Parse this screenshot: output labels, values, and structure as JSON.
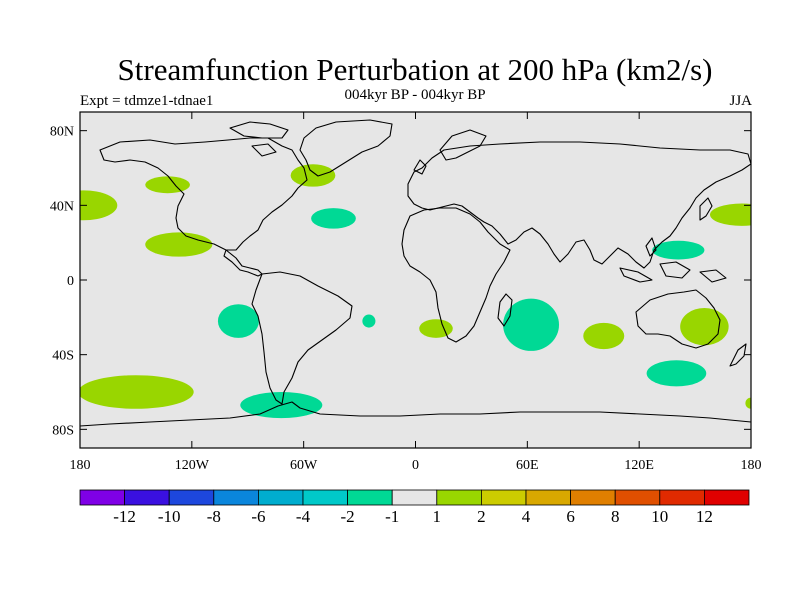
{
  "title": "Streamfunction Perturbation at 200 hPa (km2/s)",
  "subtitle": "004kyr BP - 004kyr BP",
  "left_label": "Expt = tdmze1-tdnae1",
  "right_label": "JJA",
  "colors": {
    "background": "#e6e6e6",
    "negative_fill": "#00d995",
    "positive_fill": "#99d600",
    "coast": "#000000"
  },
  "axes": {
    "y_ticks": [
      {
        "value": 80,
        "label": "80N"
      },
      {
        "value": 40,
        "label": "40N"
      },
      {
        "value": 0,
        "label": "0"
      },
      {
        "value": -40,
        "label": "40S"
      },
      {
        "value": -80,
        "label": "80S"
      }
    ],
    "x_ticks": [
      {
        "value": -180,
        "label": "180"
      },
      {
        "value": -120,
        "label": "120W"
      },
      {
        "value": -60,
        "label": "60W"
      },
      {
        "value": 0,
        "label": "0"
      },
      {
        "value": 60,
        "label": "60E"
      },
      {
        "value": 120,
        "label": "120E"
      },
      {
        "value": 180,
        "label": "180"
      }
    ],
    "lon_range": [
      -180,
      180
    ],
    "lat_range": [
      -90,
      90
    ]
  },
  "anomalies": [
    {
      "lon": -178,
      "lat": 40,
      "rlon": 18,
      "rlat": 8,
      "sign": "positive"
    },
    {
      "lon": -133,
      "lat": 51,
      "rlon": 12,
      "rlat": 4.5,
      "sign": "positive"
    },
    {
      "lon": -127,
      "lat": 19,
      "rlon": 18,
      "rlat": 6.5,
      "sign": "positive"
    },
    {
      "lon": -55,
      "lat": 56,
      "rlon": 12,
      "rlat": 6,
      "sign": "positive"
    },
    {
      "lon": -44,
      "lat": 33,
      "rlon": 12,
      "rlat": 5.5,
      "sign": "negative"
    },
    {
      "lon": -95,
      "lat": -22,
      "rlon": 11,
      "rlat": 9,
      "sign": "negative"
    },
    {
      "lon": -25,
      "lat": -22,
      "rlon": 3.5,
      "rlat": 3.5,
      "sign": "negative"
    },
    {
      "lon": 11,
      "lat": -26,
      "rlon": 9,
      "rlat": 5,
      "sign": "positive"
    },
    {
      "lon": 62,
      "lat": -24,
      "rlon": 15,
      "rlat": 14,
      "sign": "negative"
    },
    {
      "lon": 101,
      "lat": -30,
      "rlon": 11,
      "rlat": 7,
      "sign": "positive"
    },
    {
      "lon": 141,
      "lat": 16,
      "rlon": 14,
      "rlat": 5,
      "sign": "negative"
    },
    {
      "lon": 175,
      "lat": 35,
      "rlon": 17,
      "rlat": 6,
      "sign": "positive"
    },
    {
      "lon": 155,
      "lat": -25,
      "rlon": 13,
      "rlat": 10,
      "sign": "positive"
    },
    {
      "lon": 140,
      "lat": -50,
      "rlon": 16,
      "rlat": 7,
      "sign": "negative"
    },
    {
      "lon": -150,
      "lat": -60,
      "rlon": 31,
      "rlat": 9,
      "sign": "positive"
    },
    {
      "lon": -72,
      "lat": -67,
      "rlon": 22,
      "rlat": 7,
      "sign": "negative"
    },
    {
      "lon": 180,
      "lat": -66,
      "rlon": 3,
      "rlat": 3,
      "sign": "positive"
    }
  ],
  "colorbar": {
    "colors": [
      "#7f00e6",
      "#3a10e0",
      "#1d47dd",
      "#0a86dc",
      "#00adcf",
      "#00c9c9",
      "#00d995",
      "#e6e6e6",
      "#99d600",
      "#cccc00",
      "#d9a800",
      "#e07f00",
      "#e04f00",
      "#e02a00",
      "#e00000"
    ],
    "labels": [
      "-12",
      "-10",
      "-8",
      "-6",
      "-4",
      "-2",
      "-1",
      "1",
      "2",
      "4",
      "6",
      "8",
      "10",
      "12"
    ]
  }
}
